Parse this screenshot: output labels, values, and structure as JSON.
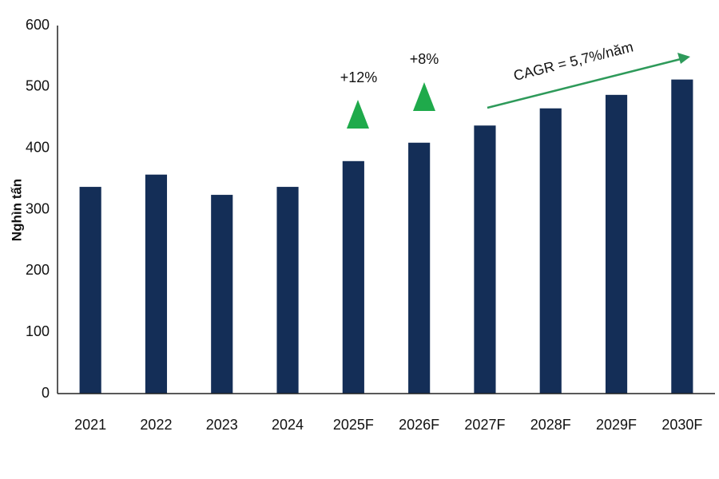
{
  "chart_data": {
    "type": "bar",
    "y_label": "Nghìn tấn",
    "categories": [
      "2021",
      "2022",
      "2023",
      "2024",
      "2025F",
      "2026F",
      "2027F",
      "2028F",
      "2029F",
      "2030F"
    ],
    "values": [
      337,
      357,
      324,
      337,
      379,
      409,
      437,
      465,
      487,
      512
    ],
    "color": "#142e57",
    "ylim": [
      0,
      600
    ],
    "yticks": [
      0,
      100,
      200,
      300,
      400,
      500,
      600
    ],
    "grid": false,
    "annotations": [
      "+12%",
      "+8%",
      "CAGR = 5,7%/năm"
    ]
  }
}
